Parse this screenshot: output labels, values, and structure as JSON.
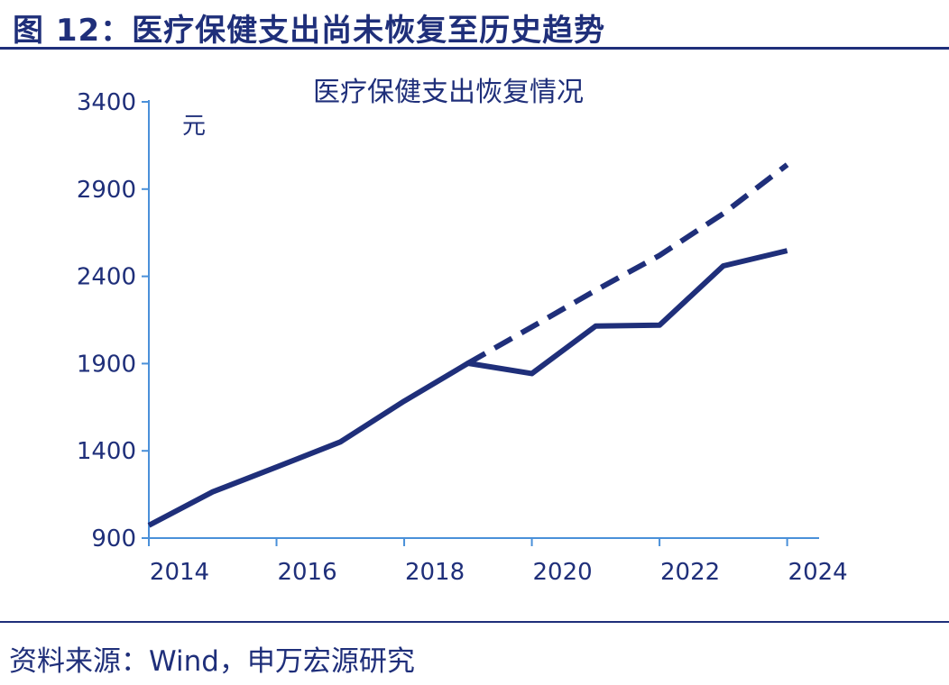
{
  "figure": {
    "title": "图 12：医疗保健支出尚未恢复至历史趋势",
    "source": "资料来源：Wind，申万宏源研究"
  },
  "colors": {
    "primary": "#1f2f7a",
    "axis": "#4a90d9"
  },
  "chart_data": {
    "type": "line",
    "title": "医疗保健支出恢复情况",
    "unit_label": "元",
    "xlabel": "",
    "ylabel": "",
    "x_tick_labels": [
      "2014",
      "2016",
      "2018",
      "2020",
      "2022",
      "2024"
    ],
    "y_tick_labels": [
      "900",
      "1400",
      "1900",
      "2400",
      "2900",
      "3400"
    ],
    "ylim": [
      900,
      3400
    ],
    "xlim": [
      2014,
      2024.5
    ],
    "grid": false,
    "legend": "none",
    "series": [
      {
        "style": "solid",
        "x": [
          2014,
          2015,
          2016,
          2017,
          2018,
          2019,
          2020,
          2021,
          2022,
          2023,
          2024
        ],
        "values": [
          973,
          1165,
          1307,
          1451,
          1685,
          1902,
          1843,
          2115,
          2120,
          2460,
          2547
        ]
      },
      {
        "style": "dashed",
        "x": [
          2019,
          2020,
          2021,
          2022,
          2023,
          2024
        ],
        "values": [
          1902,
          2110,
          2320,
          2520,
          2760,
          3040
        ]
      }
    ]
  }
}
